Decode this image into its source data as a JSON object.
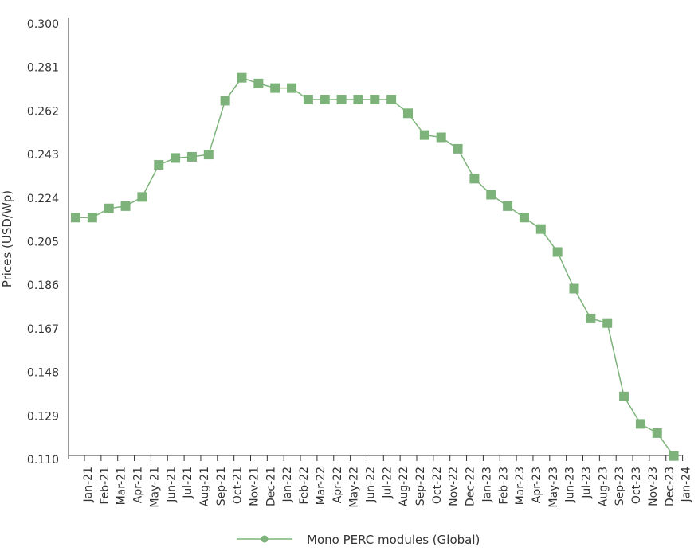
{
  "colors": {
    "series": "#7db37a",
    "axis": "#333333"
  },
  "chart_data": {
    "type": "line",
    "ylabel": "Prices (USD/Wp)",
    "ylim": [
      0.11,
      0.3
    ],
    "yticks": [
      "0.110",
      "0.129",
      "0.148",
      "0.167",
      "0.186",
      "0.205",
      "0.224",
      "0.243",
      "0.262",
      "0.281",
      "0.300"
    ],
    "grid": false,
    "legend_position": "bottom",
    "categories": [
      "Jan-21",
      "Feb-21",
      "Mar-21",
      "Apr-21",
      "May-21",
      "Jun-21",
      "Jul-21",
      "Aug-21",
      "Sep-21",
      "Oct-21",
      "Nov-21",
      "Dec-21",
      "Jan-22",
      "Feb-22",
      "Mar-22",
      "Apr-22",
      "May-22",
      "Jun-22",
      "Jul-22",
      "Aug-22",
      "Sep-22",
      "Oct-22",
      "Nov-22",
      "Dec-22",
      "Jan-23",
      "Feb-23",
      "Mar-23",
      "Apr-23",
      "May-23",
      "Jun-23",
      "Jul-23",
      "Aug-23",
      "Sep-23",
      "Oct-23",
      "Nov-23",
      "Dec-23",
      "Jan-24"
    ],
    "series": [
      {
        "name": "Mono PERC modules (Global)",
        "values": [
          0.2155,
          0.2155,
          0.2195,
          0.2205,
          0.2245,
          0.2385,
          0.2415,
          0.242,
          0.243,
          0.2665,
          0.2765,
          0.274,
          0.272,
          0.272,
          0.267,
          0.267,
          0.267,
          0.267,
          0.267,
          0.267,
          0.261,
          0.2515,
          0.2505,
          0.2455,
          0.2325,
          0.2255,
          0.2205,
          0.2155,
          0.2105,
          0.2005,
          0.1845,
          0.1715,
          0.1695,
          0.1375,
          0.1255,
          0.1215,
          0.1115
        ]
      }
    ]
  }
}
